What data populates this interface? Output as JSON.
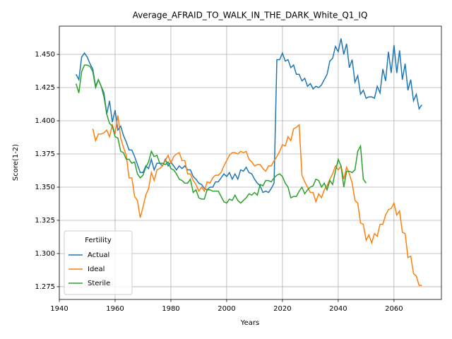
{
  "chart_data": {
    "type": "line",
    "title": "Average_AFRAID_TO_WALK_IN_THE_DARK_White_Q1_IQ",
    "x_label": "Years",
    "y_label": "Score(1-2)",
    "x": [
      1946,
      1947,
      1948,
      1949,
      1950,
      1951,
      1952,
      1953,
      1954,
      1955,
      1956,
      1957,
      1958,
      1959,
      1960,
      1961,
      1962,
      1963,
      1964,
      1965,
      1966,
      1967,
      1968,
      1969,
      1970,
      1971,
      1972,
      1973,
      1974,
      1975,
      1976,
      1977,
      1978,
      1979,
      1980,
      1981,
      1982,
      1983,
      1984,
      1985,
      1986,
      1987,
      1988,
      1989,
      1990,
      1991,
      1992,
      1993,
      1994,
      1995,
      1996,
      1997,
      1998,
      1999,
      2000,
      2001,
      2002,
      2003,
      2004,
      2005,
      2006,
      2007,
      2008,
      2009,
      2010,
      2011,
      2012,
      2013,
      2014,
      2015,
      2016,
      2017,
      2018,
      2019,
      2020,
      2021,
      2022,
      2023,
      2024,
      2025,
      2026,
      2027,
      2028,
      2029,
      2030,
      2031,
      2032,
      2033,
      2034,
      2035,
      2036,
      2037,
      2038,
      2039,
      2040,
      2041,
      2042,
      2043,
      2044,
      2045,
      2046,
      2047,
      2048,
      2049,
      2050,
      2051,
      2052,
      2053,
      2054,
      2055,
      2056,
      2057,
      2058,
      2059,
      2060,
      2061,
      2062,
      2063,
      2064,
      2065,
      2066,
      2067,
      2068,
      2069,
      2070
    ],
    "series": [
      {
        "name": "Actual",
        "color": "#1f77b4",
        "values": [
          1.435,
          1.431,
          1.448,
          1.451,
          1.448,
          1.443,
          1.439,
          1.426,
          1.431,
          1.426,
          1.421,
          1.405,
          1.415,
          1.399,
          1.408,
          1.393,
          1.396,
          1.389,
          1.384,
          1.378,
          1.378,
          1.373,
          1.367,
          1.361,
          1.361,
          1.366,
          1.364,
          1.371,
          1.363,
          1.368,
          1.368,
          1.366,
          1.371,
          1.366,
          1.369,
          1.366,
          1.363,
          1.366,
          1.364,
          1.366,
          1.363,
          1.363,
          1.358,
          1.356,
          1.353,
          1.352,
          1.349,
          1.348,
          1.35,
          1.35,
          1.354,
          1.354,
          1.357,
          1.36,
          1.358,
          1.361,
          1.356,
          1.36,
          1.356,
          1.363,
          1.362,
          1.365,
          1.361,
          1.36,
          1.356,
          1.353,
          1.351,
          1.346,
          1.347,
          1.346,
          1.349,
          1.353,
          1.446,
          1.446,
          1.451,
          1.445,
          1.446,
          1.44,
          1.442,
          1.435,
          1.435,
          1.43,
          1.432,
          1.426,
          1.428,
          1.424,
          1.426,
          1.425,
          1.427,
          1.431,
          1.435,
          1.445,
          1.447,
          1.456,
          1.452,
          1.462,
          1.45,
          1.458,
          1.44,
          1.446,
          1.429,
          1.434,
          1.42,
          1.423,
          1.417,
          1.418,
          1.418,
          1.417,
          1.426,
          1.421,
          1.439,
          1.43,
          1.452,
          1.436,
          1.457,
          1.436,
          1.453,
          1.431,
          1.443,
          1.423,
          1.431,
          1.415,
          1.42,
          1.409,
          1.412
        ]
      },
      {
        "name": "Ideal",
        "color": "#ff7f0e",
        "values": [
          null,
          null,
          null,
          null,
          null,
          null,
          1.394,
          1.385,
          1.39,
          1.39,
          1.391,
          1.393,
          1.388,
          1.397,
          1.39,
          1.404,
          1.387,
          1.38,
          1.374,
          1.357,
          1.357,
          1.343,
          1.34,
          1.327,
          1.335,
          1.344,
          1.349,
          1.361,
          1.355,
          1.363,
          1.364,
          1.366,
          1.37,
          1.374,
          1.368,
          1.373,
          1.375,
          1.376,
          1.37,
          1.37,
          1.36,
          1.36,
          1.355,
          1.352,
          1.347,
          1.35,
          1.347,
          1.354,
          1.353,
          1.357,
          1.359,
          1.359,
          1.361,
          1.366,
          1.37,
          1.374,
          1.376,
          1.376,
          1.375,
          1.377,
          1.376,
          1.377,
          1.371,
          1.369,
          1.366,
          1.367,
          1.367,
          1.364,
          1.362,
          1.366,
          1.366,
          1.37,
          1.373,
          1.377,
          1.382,
          1.381,
          1.388,
          1.385,
          1.394,
          1.395,
          1.397,
          1.359,
          1.354,
          1.35,
          1.346,
          1.346,
          1.339,
          1.345,
          1.342,
          1.348,
          1.351,
          1.356,
          1.36,
          1.366,
          1.363,
          1.366,
          1.356,
          1.365,
          1.36,
          1.353,
          1.34,
          1.338,
          1.323,
          1.322,
          1.31,
          1.314,
          1.308,
          1.315,
          1.313,
          1.322,
          1.322,
          1.329,
          1.333,
          1.334,
          1.338,
          1.329,
          1.332,
          1.316,
          1.315,
          1.297,
          1.298,
          1.285,
          1.283,
          1.276,
          1.276
        ]
      },
      {
        "name": "Sterile",
        "color": "#2ca02c",
        "values": [
          1.428,
          1.421,
          1.437,
          1.442,
          1.442,
          1.441,
          1.437,
          1.425,
          1.431,
          1.426,
          1.418,
          1.405,
          1.398,
          1.396,
          1.388,
          1.387,
          1.377,
          1.376,
          1.371,
          1.371,
          1.368,
          1.369,
          1.36,
          1.357,
          1.359,
          1.365,
          1.369,
          1.377,
          1.373,
          1.374,
          1.368,
          1.368,
          1.367,
          1.369,
          1.364,
          1.363,
          1.36,
          1.356,
          1.355,
          1.353,
          1.353,
          1.356,
          1.346,
          1.348,
          1.342,
          1.341,
          1.341,
          1.348,
          1.348,
          1.347,
          1.347,
          1.347,
          1.343,
          1.339,
          1.338,
          1.341,
          1.34,
          1.344,
          1.34,
          1.338,
          1.34,
          1.342,
          1.345,
          1.344,
          1.346,
          1.344,
          1.352,
          1.351,
          1.355,
          1.355,
          1.354,
          1.357,
          1.359,
          1.36,
          1.358,
          1.353,
          1.35,
          1.342,
          1.343,
          1.343,
          1.347,
          1.35,
          1.345,
          1.348,
          1.35,
          1.351,
          1.356,
          1.355,
          1.35,
          1.353,
          1.348,
          1.355,
          1.352,
          1.362,
          1.371,
          1.366,
          1.35,
          1.362,
          1.362,
          1.361,
          1.363,
          1.377,
          1.381,
          1.356,
          1.353,
          null,
          null,
          null,
          null,
          null,
          null,
          null,
          null,
          null,
          null,
          null,
          null,
          null,
          null,
          null,
          null,
          null,
          null,
          null,
          null
        ]
      }
    ],
    "xlim": [
      1940,
      2077
    ],
    "ylim": [
      1.2654,
      1.4713
    ],
    "xticks": [
      1940,
      1960,
      1980,
      2000,
      2020,
      2040,
      2060
    ],
    "yticks": [
      1.275,
      {
        "value": 1.3,
        "label": "1.300"
      },
      1.325,
      {
        "value": 1.35,
        "label": "1.350"
      },
      1.375,
      {
        "value": 1.4,
        "label": "1.400"
      },
      1.425,
      {
        "value": 1.45,
        "label": "1.450"
      }
    ],
    "grid": true,
    "legend_title": "Fertility",
    "legend_position": "lower left"
  }
}
